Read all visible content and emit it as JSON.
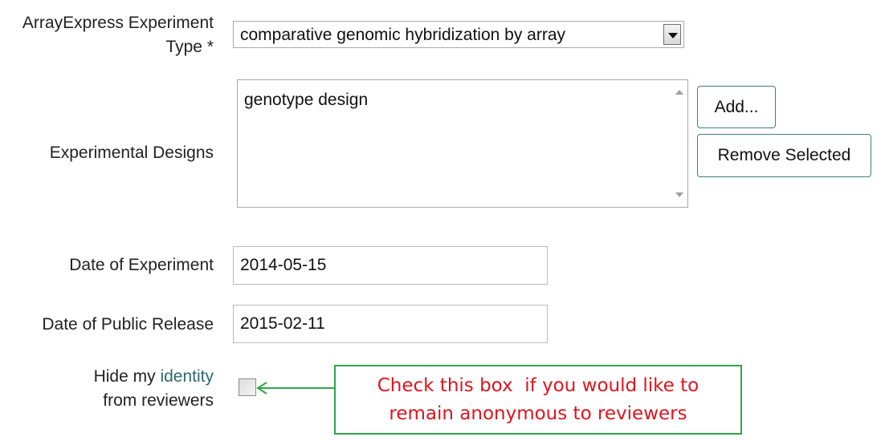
{
  "form": {
    "experiment_type": {
      "label_line1": "ArrayExpress Experiment",
      "label_line2": "Type *",
      "selected": "comparative genomic hybridization by array"
    },
    "designs": {
      "label": "Experimental Designs",
      "items": [
        "genotype design"
      ],
      "add_label": "Add...",
      "remove_label": "Remove Selected"
    },
    "date_experiment": {
      "label": "Date of Experiment",
      "value": "2014-05-15"
    },
    "date_release": {
      "label": "Date of Public Release",
      "value": "2015-02-11"
    },
    "hide_identity": {
      "label_prefix": "Hide my ",
      "label_link": "identity",
      "label_line2": "from reviewers",
      "checked": false
    }
  },
  "callout": {
    "line1": "Check this box  if you would like to",
    "line2": "remain anonymous to reviewers"
  },
  "colors": {
    "callout_border": "#2fa64a",
    "callout_text": "#e0141e",
    "button_border": "#3f8080",
    "identity_link": "#2f6b6b"
  }
}
